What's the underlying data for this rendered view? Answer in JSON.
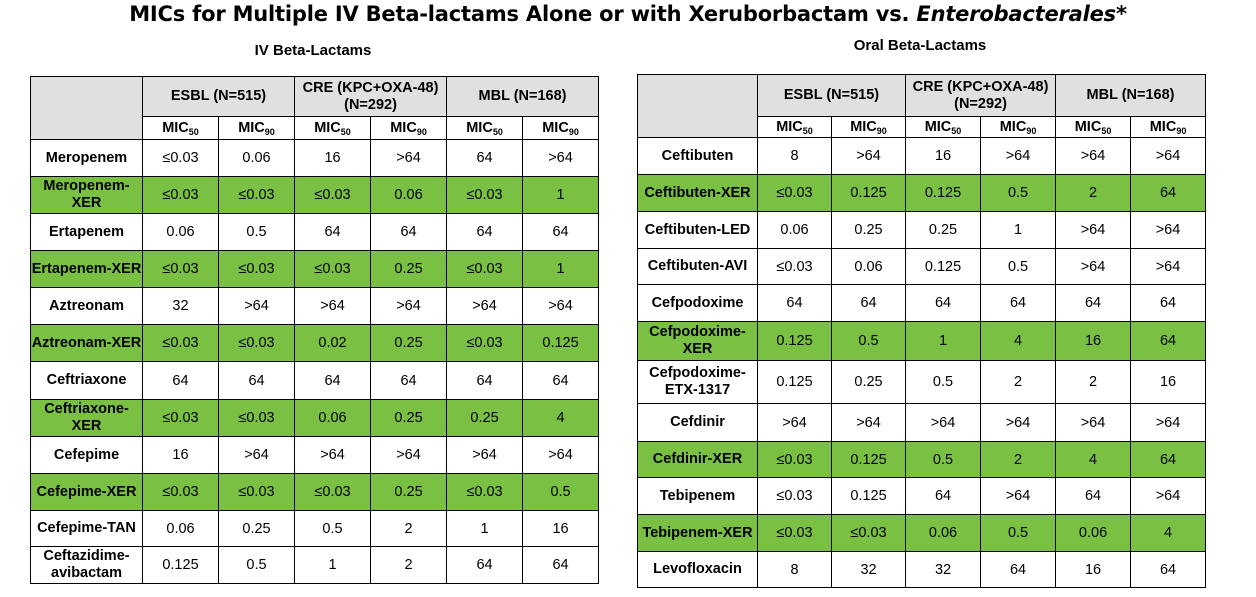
{
  "title_main": "MICs for Multiple IV Beta-lactams Alone or with Xeruborbactam vs. ",
  "title_italic": "Enterobacterales*",
  "iv": {
    "heading": "IV Beta-Lactams",
    "groups": [
      "ESBL (N=515)",
      "CRE (KPC+OXA-48) (N=292)",
      "MBL (N=168)"
    ],
    "sub_base": "MIC",
    "sub_50": "50",
    "sub_90": "90",
    "rows": [
      {
        "name": "Meropenem",
        "green": false,
        "values": [
          "≤0.03",
          "0.06",
          "16",
          ">64",
          "64",
          ">64"
        ]
      },
      {
        "name": "Meropenem-XER",
        "green": true,
        "values": [
          "≤0.03",
          "≤0.03",
          "≤0.03",
          "0.06",
          "≤0.03",
          "1"
        ]
      },
      {
        "name": "Ertapenem",
        "green": false,
        "values": [
          "0.06",
          "0.5",
          "64",
          "64",
          "64",
          "64"
        ]
      },
      {
        "name": "Ertapenem-XER",
        "green": true,
        "values": [
          "≤0.03",
          "≤0.03",
          "≤0.03",
          "0.25",
          "≤0.03",
          "1"
        ]
      },
      {
        "name": "Aztreonam",
        "green": false,
        "values": [
          "32",
          ">64",
          ">64",
          ">64",
          ">64",
          ">64"
        ]
      },
      {
        "name": "Aztreonam-XER",
        "green": true,
        "values": [
          "≤0.03",
          "≤0.03",
          "0.02",
          "0.25",
          "≤0.03",
          "0.125"
        ]
      },
      {
        "name": "Ceftriaxone",
        "green": false,
        "values": [
          "64",
          "64",
          "64",
          "64",
          "64",
          "64"
        ]
      },
      {
        "name": "Ceftriaxone-XER",
        "green": true,
        "values": [
          "≤0.03",
          "≤0.03",
          "0.06",
          "0.25",
          "0.25",
          "4"
        ]
      },
      {
        "name": "Cefepime",
        "green": false,
        "values": [
          "16",
          ">64",
          ">64",
          ">64",
          ">64",
          ">64"
        ]
      },
      {
        "name": "Cefepime-XER",
        "green": true,
        "values": [
          "≤0.03",
          "≤0.03",
          "≤0.03",
          "0.25",
          "≤0.03",
          "0.5"
        ]
      },
      {
        "name": "Cefepime-TAN",
        "green": false,
        "values": [
          "0.06",
          "0.25",
          "0.5",
          "2",
          "1",
          "16"
        ]
      },
      {
        "name": "Ceftazidime-avibactam",
        "green": false,
        "values": [
          "0.125",
          "0.5",
          "1",
          "2",
          "64",
          "64"
        ]
      }
    ]
  },
  "oral": {
    "heading": "Oral Beta-Lactams",
    "groups": [
      "ESBL (N=515)",
      "CRE (KPC+OXA-48) (N=292)",
      "MBL (N=168)"
    ],
    "sub_base": "MIC",
    "sub_50": "50",
    "sub_90": "90",
    "rows": [
      {
        "name": "Ceftibuten",
        "green": false,
        "values": [
          "8",
          ">64",
          "16",
          ">64",
          ">64",
          ">64"
        ]
      },
      {
        "name": "Ceftibuten-XER",
        "green": true,
        "values": [
          "≤0.03",
          "0.125",
          "0.125",
          "0.5",
          "2",
          "64"
        ]
      },
      {
        "name": "Ceftibuten-LED",
        "green": false,
        "values": [
          "0.06",
          "0.25",
          "0.25",
          "1",
          ">64",
          ">64"
        ]
      },
      {
        "name": "Ceftibuten-AVI",
        "green": false,
        "values": [
          "≤0.03",
          "0.06",
          "0.125",
          "0.5",
          ">64",
          ">64"
        ]
      },
      {
        "name": "Cefpodoxime",
        "green": false,
        "values": [
          "64",
          "64",
          "64",
          "64",
          "64",
          "64"
        ]
      },
      {
        "name": "Cefpodoxime-XER",
        "green": true,
        "values": [
          "0.125",
          "0.5",
          "1",
          "4",
          "16",
          "64"
        ]
      },
      {
        "name": "Cefpodoxime-ETX-1317",
        "green": false,
        "values": [
          "0.125",
          "0.25",
          "0.5",
          "2",
          "2",
          "16"
        ]
      },
      {
        "name": "Cefdinir",
        "green": false,
        "values": [
          ">64",
          ">64",
          ">64",
          ">64",
          ">64",
          ">64"
        ]
      },
      {
        "name": "Cefdinir-XER",
        "green": true,
        "values": [
          "≤0.03",
          "0.125",
          "0.5",
          "2",
          "4",
          "64"
        ]
      },
      {
        "name": "Tebipenem",
        "green": false,
        "values": [
          "≤0.03",
          "0.125",
          "64",
          ">64",
          "64",
          ">64"
        ]
      },
      {
        "name": "Tebipenem-XER",
        "green": true,
        "values": [
          "≤0.03",
          "≤0.03",
          "0.06",
          "0.5",
          "0.06",
          "4"
        ]
      },
      {
        "name": "Levofloxacin",
        "green": false,
        "values": [
          "8",
          "32",
          "32",
          "64",
          "16",
          "64"
        ]
      }
    ]
  }
}
